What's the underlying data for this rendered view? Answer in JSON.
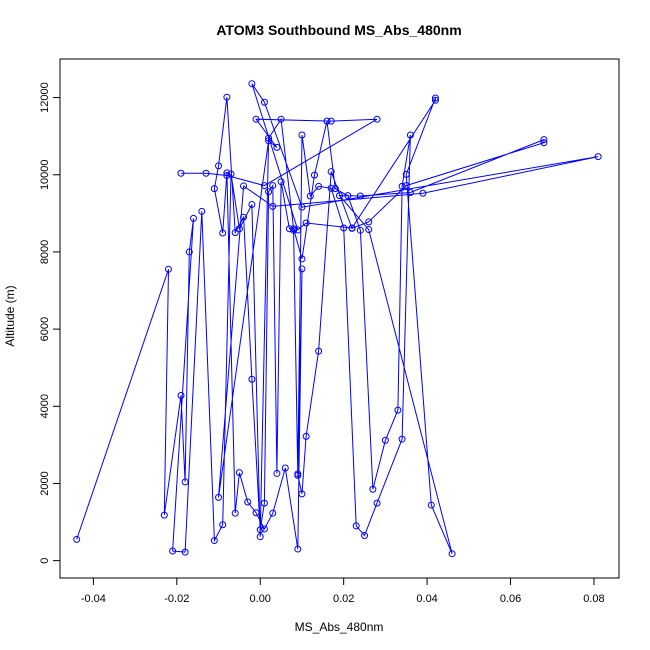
{
  "chart_data": {
    "type": "line",
    "title": "ATOM3 Southbound MS_Abs_480nm",
    "xlabel": "MS_Abs_480nm",
    "ylabel": "Altitude (m)",
    "xlim": [
      -0.048,
      0.086
    ],
    "ylim": [
      -450,
      13000
    ],
    "xticks": [
      -0.04,
      -0.02,
      0.0,
      0.02,
      0.04,
      0.06,
      0.08
    ],
    "xtick_labels": [
      "-0.04",
      "-0.02",
      "0.00",
      "0.02",
      "0.04",
      "0.06",
      "0.08"
    ],
    "yticks": [
      0,
      2000,
      4000,
      6000,
      8000,
      10000,
      12000
    ],
    "ytick_labels": [
      "0",
      "2000",
      "4000",
      "6000",
      "8000",
      "10000",
      "12000"
    ],
    "grid": false,
    "marker": "open-circle",
    "color": "#0000ff",
    "series": [
      {
        "x": [
          -0.044,
          -0.022,
          -0.023,
          -0.019,
          -0.018,
          -0.017,
          -0.016,
          -0.021,
          -0.018,
          -0.014,
          -0.011,
          -0.009,
          -0.007,
          -0.005,
          -0.002,
          0.0,
          0.002,
          0.005,
          0.008,
          0.01,
          0.013,
          0.016,
          0.018,
          0.021,
          0.024,
          0.027,
          0.03,
          0.033,
          0.034,
          0.036,
          0.034,
          0.028,
          0.025,
          0.023,
          0.02,
          0.017,
          0.014,
          0.012,
          0.01,
          0.009,
          0.01,
          0.009,
          0.006,
          0.003,
          0.001,
          -0.001,
          -0.003,
          -0.005,
          -0.006,
          -0.008,
          -0.009,
          -0.011,
          -0.01,
          -0.008,
          -0.006,
          -0.004,
          -0.002,
          0.0,
          0.001,
          0.002,
          0.003,
          0.004,
          0.005,
          0.007,
          0.008,
          0.009,
          0.01,
          0.011,
          0.014,
          0.017,
          0.022,
          0.026,
          0.035,
          0.068,
          0.068,
          0.036,
          0.024,
          0.019,
          0.026,
          0.046,
          0.041,
          0.035,
          0.042,
          0.042,
          0.022,
          0.011,
          0.009,
          -0.002,
          0.001,
          0.01,
          0.081,
          0.039,
          0.003,
          -0.004,
          -0.01,
          0.002,
          0.004,
          -0.001,
          0.017,
          0.028,
          0.001,
          -0.008,
          -0.013,
          -0.019
        ],
        "y": [
          550,
          7550,
          1180,
          4280,
          2040,
          8000,
          8870,
          250,
          220,
          9050,
          520,
          930,
          10020,
          8600,
          9230,
          620,
          10950,
          11440,
          8600,
          7820,
          9990,
          11390,
          9640,
          9460,
          8560,
          1850,
          3120,
          3900,
          9700,
          11030,
          3150,
          1490,
          650,
          900,
          8620,
          9650,
          9700,
          9450,
          11030,
          2250,
          7560,
          300,
          2400,
          1230,
          820,
          1240,
          1520,
          2280,
          1230,
          10050,
          8490,
          9640,
          10230,
          12010,
          8500,
          8900,
          4700,
          800,
          1490,
          9560,
          9720,
          2260,
          9820,
          8600,
          8560,
          2210,
          1730,
          3220,
          5430,
          10080,
          8610,
          8780,
          9720,
          10830,
          10910,
          9540,
          9450,
          9460,
          8580,
          180,
          1440,
          10010,
          11990,
          11930,
          8620,
          8750,
          8570,
          12360,
          11880,
          9160,
          10470,
          9520,
          9180,
          9710,
          1640,
          10880,
          10710,
          11440,
          11390,
          11440,
          9720,
          9980,
          10040,
          10040
        ]
      }
    ]
  }
}
